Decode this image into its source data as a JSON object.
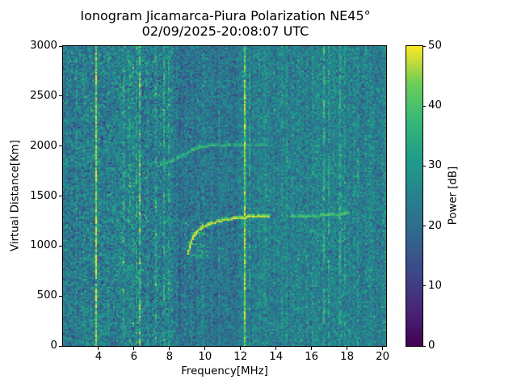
{
  "chart_data": {
    "type": "heatmap",
    "title": "Ionogram Jicamarca-Piura Polarization NE45°",
    "subtitle": "02/09/2025-20:08:07 UTC",
    "xlabel": "Frequency[MHz]",
    "ylabel": "Virtual Distance[Km]",
    "xlim": [
      2.0,
      20.2
    ],
    "ylim": [
      0,
      3000
    ],
    "xticks": [
      4,
      6,
      8,
      10,
      12,
      14,
      16,
      18,
      20
    ],
    "yticks": [
      0,
      500,
      1000,
      1500,
      2000,
      2500,
      3000
    ],
    "grid": false,
    "colorbar": {
      "label": "Power [dB]",
      "ticks": [
        0,
        10,
        20,
        30,
        40,
        50
      ],
      "vmin": 0,
      "vmax": 50,
      "colormap": "viridis"
    },
    "colormap_stops": [
      "#440154",
      "#482878",
      "#3e4a89",
      "#31688e",
      "#26828e",
      "#1f9e89",
      "#35b779",
      "#6dcd59",
      "#fde725"
    ],
    "colors": {
      "background": "#ffffff",
      "text": "#000000",
      "spine": "#000000"
    },
    "noise": {
      "mean_db": 24,
      "std_db": 4.3,
      "column_jitter_db": 1.1
    },
    "dark_bands": [
      {
        "range": [
          8.2,
          12.1
        ],
        "drop_db": 2
      },
      {
        "range": [
          8.3,
          9.6
        ],
        "drop_db": 1
      }
    ],
    "bright_bands": [
      {
        "range": [
          16.3,
          17.8
        ],
        "boost_db": 1.5
      }
    ],
    "dark_lanes": [
      {
        "freq": 6.5,
        "drop_db": 5,
        "duty": 0.7
      },
      {
        "freq": 7.05,
        "drop_db": 4,
        "duty": 0.6
      }
    ],
    "rfi_stripes": [
      {
        "freq": 2.77,
        "boost_db": 5,
        "duty": 0.3
      },
      {
        "freq": 3.85,
        "boost_db": 22,
        "duty": 0.97
      },
      {
        "freq": 5.4,
        "boost_db": 9,
        "duty": 0.6
      },
      {
        "freq": 5.75,
        "boost_db": 8,
        "duty": 0.55
      },
      {
        "freq": 5.95,
        "boost_db": 9,
        "duty": 0.6
      },
      {
        "freq": 6.15,
        "boost_db": 8,
        "duty": 0.55
      },
      {
        "freq": 6.35,
        "boost_db": 15,
        "duty": 0.85
      },
      {
        "freq": 6.65,
        "boost_db": 6,
        "duty": 0.45
      },
      {
        "freq": 7.25,
        "boost_db": 11,
        "duty": 0.65
      },
      {
        "freq": 7.65,
        "boost_db": 10,
        "duty": 0.65
      },
      {
        "freq": 8.0,
        "boost_db": 9,
        "duty": 0.55
      },
      {
        "freq": 8.65,
        "boost_db": 5,
        "duty": 0.35
      },
      {
        "freq": 9.1,
        "boost_db": 5,
        "duty": 0.35
      },
      {
        "freq": 9.6,
        "boost_db": 6,
        "duty": 0.45
      },
      {
        "freq": 9.85,
        "boost_db": 6,
        "duty": 0.45
      },
      {
        "freq": 10.8,
        "boost_db": 6,
        "duty": 0.45
      },
      {
        "freq": 11.35,
        "boost_db": 6,
        "duty": 0.4
      },
      {
        "freq": 12.2,
        "boost_db": 19,
        "duty": 0.97
      },
      {
        "freq": 12.5,
        "boost_db": 9,
        "duty": 0.55
      },
      {
        "freq": 13.4,
        "boost_db": 6,
        "duty": 0.45
      },
      {
        "freq": 13.9,
        "boost_db": 5,
        "duty": 0.35
      },
      {
        "freq": 14.35,
        "boost_db": 6,
        "duty": 0.4
      },
      {
        "freq": 14.6,
        "boost_db": 5,
        "duty": 0.35
      },
      {
        "freq": 15.0,
        "boost_db": 5,
        "duty": 0.35
      },
      {
        "freq": 15.7,
        "boost_db": 6,
        "duty": 0.4
      },
      {
        "freq": 16.1,
        "boost_db": 7,
        "duty": 0.5
      },
      {
        "freq": 16.7,
        "boost_db": 14,
        "duty": 0.7
      },
      {
        "freq": 16.95,
        "boost_db": 10,
        "duty": 0.6
      },
      {
        "freq": 17.6,
        "boost_db": 9,
        "duty": 0.6
      },
      {
        "freq": 17.9,
        "boost_db": 9,
        "duty": 0.55
      },
      {
        "freq": 18.4,
        "boost_db": 7,
        "duty": 0.45
      },
      {
        "freq": 18.6,
        "boost_db": 7,
        "duty": 0.45
      },
      {
        "freq": 19.1,
        "boost_db": 5,
        "duty": 0.35
      },
      {
        "freq": 19.5,
        "boost_db": 5,
        "duty": 0.3
      }
    ],
    "echo_traces": [
      {
        "name": "F-region echo trace",
        "power_db": 44,
        "duty": 0.85,
        "points": [
          [
            9.05,
            930
          ],
          [
            9.2,
            1035
          ],
          [
            9.4,
            1110
          ],
          [
            9.6,
            1155
          ],
          [
            9.9,
            1195
          ],
          [
            10.4,
            1230
          ],
          [
            11.0,
            1260
          ],
          [
            11.7,
            1280
          ],
          [
            12.3,
            1290
          ],
          [
            13.0,
            1295
          ],
          [
            13.6,
            1300
          ]
        ]
      },
      {
        "name": "F-region echo extension",
        "power_db": 38,
        "duty": 0.6,
        "points": [
          [
            14.8,
            1300
          ],
          [
            15.6,
            1303
          ],
          [
            16.3,
            1305
          ],
          [
            17.0,
            1310
          ],
          [
            17.7,
            1322
          ],
          [
            18.15,
            1338
          ]
        ]
      },
      {
        "name": "second-hop echo trace",
        "power_db": 35,
        "duty": 0.55,
        "points": [
          [
            7.3,
            1795
          ],
          [
            8.0,
            1845
          ],
          [
            8.7,
            1900
          ],
          [
            9.4,
            1965
          ],
          [
            9.8,
            1995
          ],
          [
            10.5,
            2005
          ],
          [
            11.6,
            2013
          ],
          [
            12.8,
            2013
          ],
          [
            13.6,
            2005
          ]
        ]
      }
    ],
    "spread_patch": {
      "freq_range": [
        8.9,
        10.1
      ],
      "km_range": [
        880,
        1230
      ],
      "power_db": 34,
      "density": 0.18
    }
  }
}
